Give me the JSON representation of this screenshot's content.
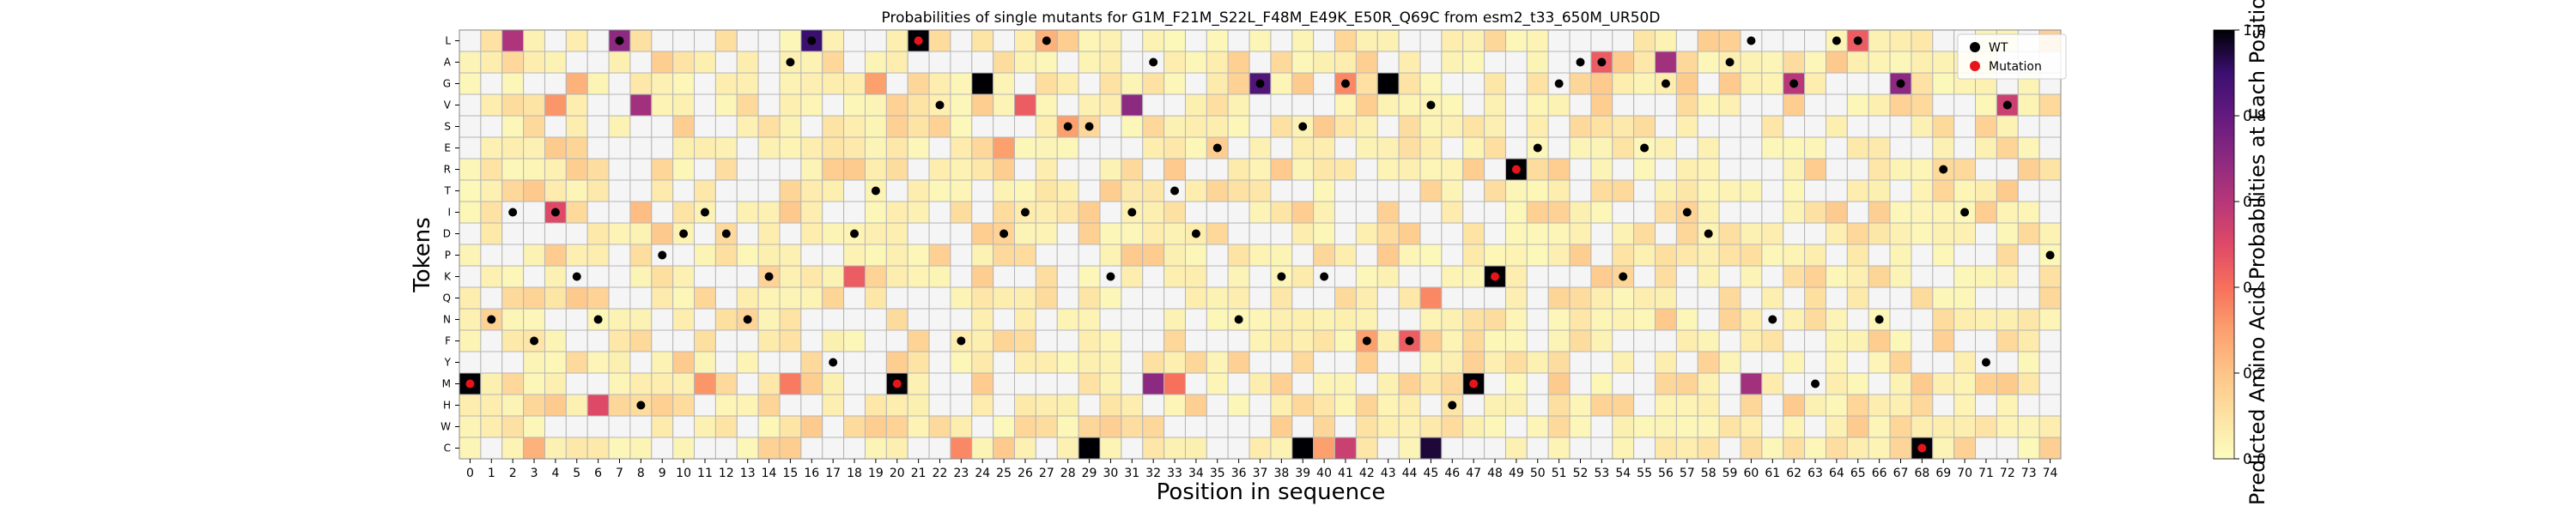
{
  "chart_data": {
    "type": "heatmap",
    "title": "Probabilities of single mutants for G1M_F21M_S22L_F48M_E49K_E50R_Q69C from esm2_t33_650M_UR50D",
    "xlabel": "Position in sequence",
    "ylabel": "Tokens",
    "x_ticks": [
      "0",
      "1",
      "2",
      "3",
      "4",
      "5",
      "6",
      "7",
      "8",
      "9",
      "10",
      "11",
      "12",
      "13",
      "14",
      "15",
      "16",
      "17",
      "18",
      "19",
      "20",
      "21",
      "22",
      "23",
      "24",
      "25",
      "26",
      "27",
      "28",
      "29",
      "30",
      "31",
      "32",
      "33",
      "34",
      "35",
      "36",
      "37",
      "38",
      "39",
      "40",
      "41",
      "42",
      "43",
      "44",
      "45",
      "46",
      "47",
      "48",
      "49",
      "50",
      "51",
      "52",
      "53",
      "54",
      "55",
      "56",
      "57",
      "58",
      "59",
      "60",
      "61",
      "62",
      "63",
      "64",
      "65",
      "66",
      "67",
      "68",
      "69",
      "70",
      "71",
      "72",
      "73",
      "74"
    ],
    "tokens": [
      "L",
      "A",
      "G",
      "V",
      "S",
      "E",
      "R",
      "T",
      "I",
      "D",
      "P",
      "K",
      "Q",
      "N",
      "F",
      "Y",
      "M",
      "H",
      "W",
      "C"
    ],
    "colorbar": {
      "label": "Predicted Amino Acid Probabilities at Each Position",
      "ticks": [
        "0.0",
        "0.2",
        "0.4",
        "0.6",
        "0.8",
        "1.0"
      ],
      "range": [
        0,
        1
      ],
      "colormap": "magma_r"
    },
    "legend": {
      "position": "top-right",
      "entries": [
        {
          "label": "WT",
          "color": "#000000"
        },
        {
          "label": "Mutation",
          "color": "#e8141b"
        }
      ]
    },
    "wt_markers": [
      {
        "pos": 1,
        "token": "N"
      },
      {
        "pos": 2,
        "token": "I"
      },
      {
        "pos": 3,
        "token": "F"
      },
      {
        "pos": 4,
        "token": "I"
      },
      {
        "pos": 5,
        "token": "K"
      },
      {
        "pos": 6,
        "token": "N"
      },
      {
        "pos": 7,
        "token": "L"
      },
      {
        "pos": 8,
        "token": "H"
      },
      {
        "pos": 9,
        "token": "P"
      },
      {
        "pos": 10,
        "token": "D"
      },
      {
        "pos": 11,
        "token": "I"
      },
      {
        "pos": 12,
        "token": "D"
      },
      {
        "pos": 13,
        "token": "N"
      },
      {
        "pos": 14,
        "token": "K"
      },
      {
        "pos": 15,
        "token": "A"
      },
      {
        "pos": 16,
        "token": "L"
      },
      {
        "pos": 17,
        "token": "Y"
      },
      {
        "pos": 18,
        "token": "D"
      },
      {
        "pos": 19,
        "token": "T"
      },
      {
        "pos": 22,
        "token": "V"
      },
      {
        "pos": 23,
        "token": "F"
      },
      {
        "pos": 25,
        "token": "D"
      },
      {
        "pos": 26,
        "token": "I"
      },
      {
        "pos": 27,
        "token": "L"
      },
      {
        "pos": 28,
        "token": "S"
      },
      {
        "pos": 29,
        "token": "S"
      },
      {
        "pos": 30,
        "token": "K"
      },
      {
        "pos": 31,
        "token": "I"
      },
      {
        "pos": 32,
        "token": "A"
      },
      {
        "pos": 33,
        "token": "T"
      },
      {
        "pos": 34,
        "token": "D"
      },
      {
        "pos": 35,
        "token": "E"
      },
      {
        "pos": 36,
        "token": "N"
      },
      {
        "pos": 37,
        "token": "G"
      },
      {
        "pos": 38,
        "token": "K"
      },
      {
        "pos": 39,
        "token": "S"
      },
      {
        "pos": 40,
        "token": "K"
      },
      {
        "pos": 41,
        "token": "G"
      },
      {
        "pos": 42,
        "token": "F"
      },
      {
        "pos": 44,
        "token": "F"
      },
      {
        "pos": 45,
        "token": "V"
      },
      {
        "pos": 46,
        "token": "H"
      },
      {
        "pos": 50,
        "token": "E"
      },
      {
        "pos": 51,
        "token": "G"
      },
      {
        "pos": 52,
        "token": "A"
      },
      {
        "pos": 53,
        "token": "A"
      },
      {
        "pos": 54,
        "token": "K"
      },
      {
        "pos": 55,
        "token": "E"
      },
      {
        "pos": 56,
        "token": "G"
      },
      {
        "pos": 57,
        "token": "I"
      },
      {
        "pos": 58,
        "token": "D"
      },
      {
        "pos": 59,
        "token": "A"
      },
      {
        "pos": 60,
        "token": "L"
      },
      {
        "pos": 61,
        "token": "N"
      },
      {
        "pos": 62,
        "token": "G"
      },
      {
        "pos": 63,
        "token": "M"
      },
      {
        "pos": 64,
        "token": "L"
      },
      {
        "pos": 65,
        "token": "L"
      },
      {
        "pos": 66,
        "token": "N"
      },
      {
        "pos": 67,
        "token": "G"
      },
      {
        "pos": 69,
        "token": "R"
      },
      {
        "pos": 70,
        "token": "I"
      },
      {
        "pos": 71,
        "token": "Y"
      },
      {
        "pos": 72,
        "token": "V"
      },
      {
        "pos": 74,
        "token": "P"
      }
    ],
    "mutation_markers": [
      {
        "pos": 0,
        "token": "M"
      },
      {
        "pos": 20,
        "token": "M"
      },
      {
        "pos": 21,
        "token": "L"
      },
      {
        "pos": 47,
        "token": "M"
      },
      {
        "pos": 48,
        "token": "K"
      },
      {
        "pos": 49,
        "token": "R"
      },
      {
        "pos": 68,
        "token": "C"
      }
    ],
    "strong_cells": [
      {
        "pos": 0,
        "token": "M",
        "value": 1.0
      },
      {
        "pos": 2,
        "token": "L",
        "value": 0.62
      },
      {
        "pos": 3,
        "token": "C",
        "value": 0.25
      },
      {
        "pos": 4,
        "token": "I",
        "value": 0.5
      },
      {
        "pos": 4,
        "token": "V",
        "value": 0.32
      },
      {
        "pos": 5,
        "token": "G",
        "value": 0.25
      },
      {
        "pos": 6,
        "token": "H",
        "value": 0.5
      },
      {
        "pos": 7,
        "token": "L",
        "value": 0.7
      },
      {
        "pos": 8,
        "token": "V",
        "value": 0.65
      },
      {
        "pos": 8,
        "token": "I",
        "value": 0.22
      },
      {
        "pos": 11,
        "token": "M",
        "value": 0.32
      },
      {
        "pos": 15,
        "token": "M",
        "value": 0.38
      },
      {
        "pos": 16,
        "token": "L",
        "value": 0.9
      },
      {
        "pos": 18,
        "token": "K",
        "value": 0.45
      },
      {
        "pos": 19,
        "token": "G",
        "value": 0.3
      },
      {
        "pos": 20,
        "token": "M",
        "value": 1.0
      },
      {
        "pos": 21,
        "token": "L",
        "value": 1.0
      },
      {
        "pos": 23,
        "token": "C",
        "value": 0.35
      },
      {
        "pos": 24,
        "token": "G",
        "value": 1.0
      },
      {
        "pos": 25,
        "token": "E",
        "value": 0.3
      },
      {
        "pos": 26,
        "token": "V",
        "value": 0.45
      },
      {
        "pos": 27,
        "token": "L",
        "value": 0.25
      },
      {
        "pos": 28,
        "token": "S",
        "value": 0.3
      },
      {
        "pos": 29,
        "token": "C",
        "value": 1.0
      },
      {
        "pos": 31,
        "token": "V",
        "value": 0.7
      },
      {
        "pos": 32,
        "token": "M",
        "value": 0.7
      },
      {
        "pos": 33,
        "token": "M",
        "value": 0.4
      },
      {
        "pos": 37,
        "token": "G",
        "value": 0.85
      },
      {
        "pos": 39,
        "token": "C",
        "value": 1.0
      },
      {
        "pos": 40,
        "token": "C",
        "value": 0.3
      },
      {
        "pos": 41,
        "token": "C",
        "value": 0.55
      },
      {
        "pos": 41,
        "token": "G",
        "value": 0.35
      },
      {
        "pos": 42,
        "token": "F",
        "value": 0.3
      },
      {
        "pos": 43,
        "token": "G",
        "value": 1.0
      },
      {
        "pos": 44,
        "token": "F",
        "value": 0.45
      },
      {
        "pos": 45,
        "token": "Q",
        "value": 0.35
      },
      {
        "pos": 45,
        "token": "C",
        "value": 0.95
      },
      {
        "pos": 47,
        "token": "M",
        "value": 1.0
      },
      {
        "pos": 48,
        "token": "K",
        "value": 1.0
      },
      {
        "pos": 49,
        "token": "R",
        "value": 1.0
      },
      {
        "pos": 53,
        "token": "A",
        "value": 0.45
      },
      {
        "pos": 56,
        "token": "A",
        "value": 0.65
      },
      {
        "pos": 60,
        "token": "M",
        "value": 0.65
      },
      {
        "pos": 62,
        "token": "G",
        "value": 0.6
      },
      {
        "pos": 65,
        "token": "L",
        "value": 0.45
      },
      {
        "pos": 67,
        "token": "G",
        "value": 0.7
      },
      {
        "pos": 68,
        "token": "C",
        "value": 1.0
      },
      {
        "pos": 72,
        "token": "V",
        "value": 0.55
      }
    ]
  }
}
